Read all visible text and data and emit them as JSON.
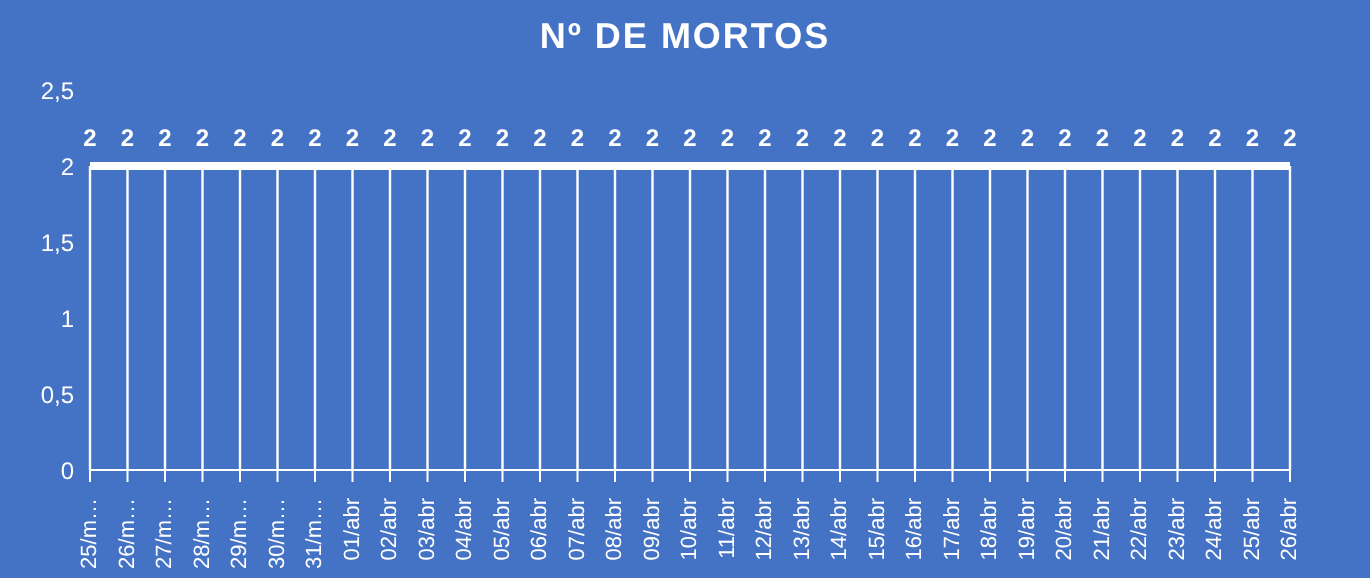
{
  "chart_data": {
    "type": "line",
    "title": "Nº DE MORTOS",
    "categories": [
      "25/m…",
      "26/m…",
      "27/m…",
      "28/m…",
      "29/m…",
      "30/m…",
      "31/m…",
      "01/abr",
      "02/abr",
      "03/abr",
      "04/abr",
      "05/abr",
      "06/abr",
      "07/abr",
      "08/abr",
      "09/abr",
      "10/abr",
      "11/abr",
      "12/abr",
      "13/abr",
      "14/abr",
      "15/abr",
      "16/abr",
      "17/abr",
      "18/abr",
      "19/abr",
      "20/abr",
      "21/abr",
      "22/abr",
      "23/abr",
      "24/abr",
      "25/abr",
      "26/abr"
    ],
    "series": [
      {
        "color": "#ffffff",
        "values": [
          2,
          2,
          2,
          2,
          2,
          2,
          2,
          2,
          2,
          2,
          2,
          2,
          2,
          2,
          2,
          2,
          2,
          2,
          2,
          2,
          2,
          2,
          2,
          2,
          2,
          2,
          2,
          2,
          2,
          2,
          2,
          2,
          2
        ]
      }
    ],
    "ylim": [
      0,
      2.5
    ],
    "yticks": [
      0,
      {
        "value": 0.5,
        "label": "0,5"
      },
      1,
      {
        "value": 1.5,
        "label": "1,5"
      },
      2,
      {
        "value": 2.5,
        "label": "2,5"
      }
    ],
    "data_labels": true,
    "grid": false,
    "marker": "none"
  }
}
